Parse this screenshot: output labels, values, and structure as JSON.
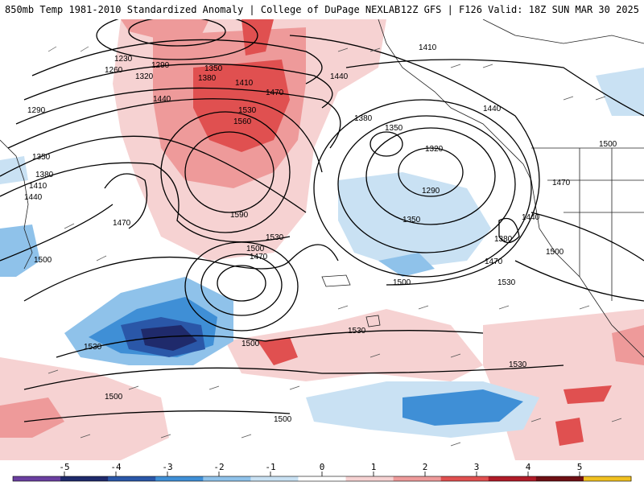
{
  "header": {
    "left": "850mb Temp 1981-2010 Standardized Anomaly | College of DuPage NEXLAB",
    "right": "12Z GFS | F126 Valid: 18Z SUN MAR 30 2025"
  },
  "colorbar": {
    "labels": [
      "-5",
      "-4",
      "-3",
      "-2",
      "-1",
      "0",
      "1",
      "2",
      "3",
      "4",
      "5"
    ],
    "colors": [
      "#6a3fa0",
      "#1f2a6b",
      "#2a57a8",
      "#3f8fd6",
      "#8fc2ea",
      "#c9e1f3",
      "#ffffff",
      "#f6d2d2",
      "#ee9a9a",
      "#e05050",
      "#b01b28",
      "#6e0f14",
      "#f0c020"
    ]
  },
  "contours": {
    "labels": [
      "1230",
      "1260",
      "1290",
      "1320",
      "1350",
      "1380",
      "1410",
      "1440",
      "1470",
      "1500",
      "1530",
      "1560",
      "1590",
      "1410",
      "1380",
      "1350",
      "1320",
      "1290",
      "1440",
      "1470",
      "1500",
      "1530",
      "1440",
      "1380",
      "1470",
      "1500",
      "1530",
      "1500",
      "1500",
      "1500",
      "1470",
      "1500",
      "1530",
      "1500",
      "1530",
      "1290",
      "1350",
      "1380",
      "1410",
      "1440",
      "1470",
      "1500"
    ]
  }
}
